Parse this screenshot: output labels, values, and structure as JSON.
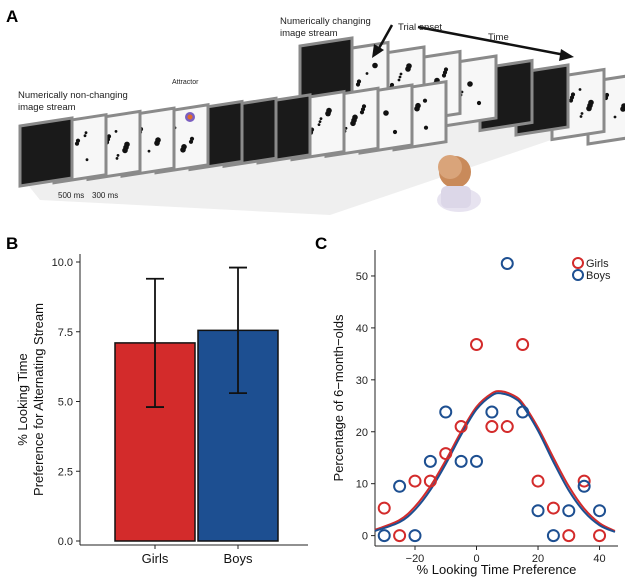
{
  "panel_a": {
    "letter": "A",
    "label_changing": [
      "Numerically changing",
      "image stream"
    ],
    "label_nonchanging": [
      "Numerically non-changing",
      "image stream"
    ],
    "label_attractor": "Attractor",
    "label_trial_onset": "Trial onset",
    "label_time": "Time",
    "label_500ms": "500 ms",
    "label_300ms": "300 ms"
  },
  "panel_b": {
    "letter": "B"
  },
  "panel_c": {
    "letter": "C"
  },
  "colors": {
    "girls": "#d32b2b",
    "boys": "#1d4f91"
  },
  "chart_data": [
    {
      "type": "bar",
      "panel": "B",
      "categories": [
        "Girls",
        "Boys"
      ],
      "values": [
        7.1,
        7.55
      ],
      "error_low": [
        4.8,
        5.3
      ],
      "error_high": [
        9.4,
        9.8
      ],
      "ylabel": [
        "% Looking Time",
        "Preference for Alternating Stream"
      ],
      "xlabel": "",
      "ylim": [
        0,
        10
      ],
      "yticks": [
        "0.0",
        "2.5",
        "5.0",
        "7.5",
        "10.0"
      ],
      "ytick_values": [
        0,
        2.5,
        5,
        7.5,
        10
      ]
    },
    {
      "type": "scatter",
      "panel": "C",
      "xlabel": "% Looking Time Preference",
      "ylabel": "Percentage of 6−month−olds",
      "xlim": [
        -33,
        46
      ],
      "ylim": [
        -2,
        55
      ],
      "xticks": [
        "−20",
        "0",
        "20",
        "40"
      ],
      "xtick_values": [
        -20,
        0,
        20,
        40
      ],
      "yticks": [
        "0",
        "10",
        "20",
        "30",
        "40",
        "50"
      ],
      "ytick_values": [
        0,
        10,
        20,
        30,
        40,
        50
      ],
      "legend": [
        "Girls",
        "Boys"
      ],
      "legend_position": "top-right",
      "series": [
        {
          "name": "Girls",
          "points": [
            [
              -30,
              5.3
            ],
            [
              -25,
              0
            ],
            [
              -20,
              10.5
            ],
            [
              -15,
              10.5
            ],
            [
              -10,
              15.8
            ],
            [
              -5,
              21
            ],
            [
              0,
              36.8
            ],
            [
              5,
              21
            ],
            [
              10,
              21
            ],
            [
              15,
              36.8
            ],
            [
              20,
              10.5
            ],
            [
              25,
              5.3
            ],
            [
              30,
              0
            ],
            [
              35,
              10.5
            ],
            [
              40,
              0
            ]
          ],
          "fit": [
            [
              -33,
              1.1
            ],
            [
              -25,
              3.0
            ],
            [
              -20,
              5.6
            ],
            [
              -15,
              9.5
            ],
            [
              -10,
              14.5
            ],
            [
              -5,
              20.0
            ],
            [
              0,
              24.8
            ],
            [
              5,
              27.4
            ],
            [
              8,
              27.8
            ],
            [
              12,
              27.0
            ],
            [
              15,
              25.5
            ],
            [
              20,
              20.8
            ],
            [
              25,
              15.0
            ],
            [
              30,
              9.5
            ],
            [
              35,
              5.2
            ],
            [
              40,
              2.4
            ],
            [
              45,
              0.9
            ]
          ]
        },
        {
          "name": "Boys",
          "points": [
            [
              -30,
              0
            ],
            [
              -25,
              9.5
            ],
            [
              -20,
              0
            ],
            [
              -15,
              14.3
            ],
            [
              -10,
              23.8
            ],
            [
              -5,
              14.3
            ],
            [
              0,
              14.3
            ],
            [
              5,
              23.8
            ],
            [
              10,
              52.4
            ],
            [
              15,
              23.8
            ],
            [
              20,
              4.8
            ],
            [
              25,
              0
            ],
            [
              30,
              4.8
            ],
            [
              35,
              9.5
            ],
            [
              40,
              4.8
            ]
          ],
          "fit": [
            [
              -33,
              0.9
            ],
            [
              -25,
              2.6
            ],
            [
              -20,
              5.0
            ],
            [
              -15,
              8.8
            ],
            [
              -10,
              13.8
            ],
            [
              -5,
              19.4
            ],
            [
              0,
              24.3
            ],
            [
              5,
              27.0
            ],
            [
              8,
              27.4
            ],
            [
              12,
              26.6
            ],
            [
              15,
              25.0
            ],
            [
              20,
              20.2
            ],
            [
              25,
              14.2
            ],
            [
              30,
              8.7
            ],
            [
              35,
              4.6
            ],
            [
              40,
              2.0
            ],
            [
              45,
              0.7
            ]
          ]
        }
      ]
    }
  ]
}
